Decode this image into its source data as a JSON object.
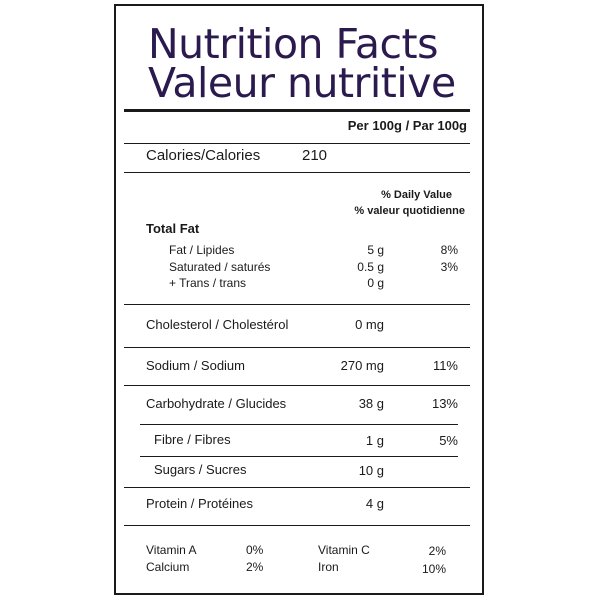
{
  "title_en": "Nutrition Facts",
  "title_fr": "Valeur nutritive",
  "serving": "Per 100g / Par 100g",
  "calories": {
    "label": "Calories/Calories",
    "value": "210"
  },
  "dv_header": {
    "en": "% Daily Value",
    "fr": "% valeur quotidienne"
  },
  "total_fat": {
    "heading": "Total Fat",
    "fat": {
      "label": "Fat / Lipides",
      "amount": "5 g",
      "dv": "8%"
    },
    "saturated": {
      "label": "Saturated / saturés",
      "amount": "0.5 g",
      "dv": "3%"
    },
    "trans": {
      "label": "+ Trans / trans",
      "amount": "0 g"
    }
  },
  "cholesterol": {
    "label": "Cholesterol / Cholestérol",
    "amount": "0 mg"
  },
  "sodium": {
    "label": "Sodium / Sodium",
    "amount": "270 mg",
    "dv": "11%"
  },
  "carbohydrate": {
    "label": "Carbohydrate / Glucides",
    "amount": "38 g",
    "dv": "13%"
  },
  "fibre": {
    "label": "Fibre / Fibres",
    "amount": "1 g",
    "dv": "5%"
  },
  "sugars": {
    "label": "Sugars / Sucres",
    "amount": "10 g"
  },
  "protein": {
    "label": "Protein / Protéines",
    "amount": "4 g"
  },
  "vitamins": {
    "vitamin_a": {
      "label": "Vitamin A",
      "dv": "0%"
    },
    "vitamin_c": {
      "label": "Vitamin C",
      "dv": "2%"
    },
    "calcium": {
      "label": "Calcium",
      "dv": "2%"
    },
    "iron": {
      "label": "Iron",
      "dv": "10%"
    }
  },
  "colors": {
    "title": "#2b1a4e",
    "text": "#1a1a1a",
    "rules": "#1a1a1a"
  }
}
